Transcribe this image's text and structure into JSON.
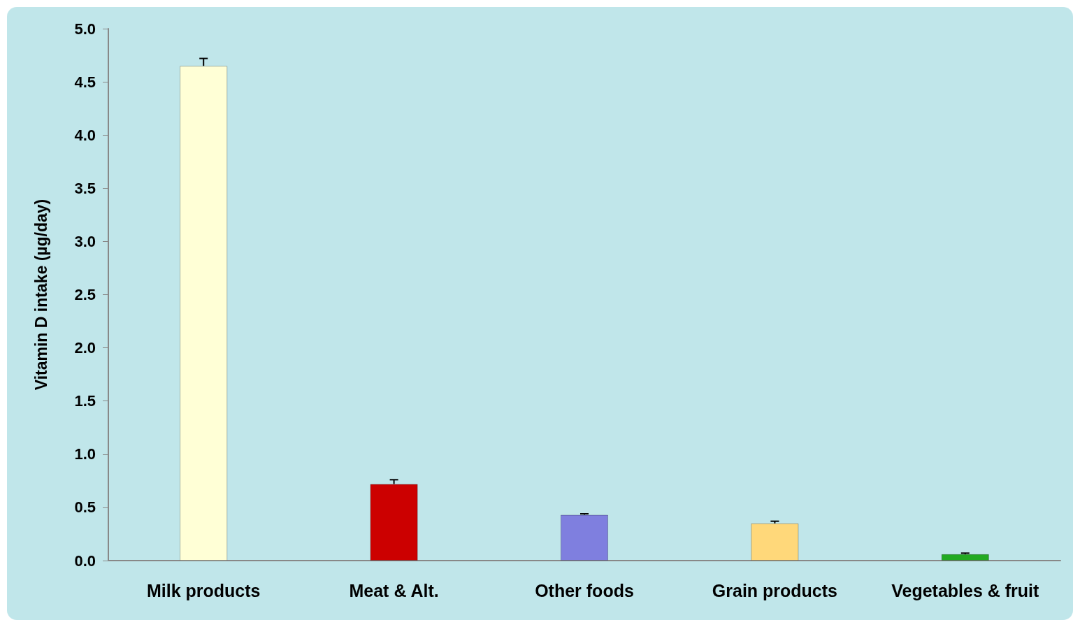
{
  "chart_data": {
    "type": "bar",
    "ylabel": "Vitamin D intake (µg/day)",
    "categories": [
      "Milk products",
      "Meat & Alt.",
      "Other foods",
      "Grain products",
      "Vegetables & fruit"
    ],
    "values": [
      4.65,
      0.72,
      0.43,
      0.35,
      0.06
    ],
    "colors": [
      "#ffffd6",
      "#cc0000",
      "#7f7fdf",
      "#ffd87a",
      "#22aa22"
    ],
    "errors": [
      [
        4.65,
        4.72
      ],
      [
        0.72,
        0.76
      ],
      [
        0.43,
        0.44
      ],
      [
        0.35,
        0.37
      ],
      [
        0.06,
        0.07
      ]
    ],
    "ylim": [
      0,
      5
    ],
    "yticks": [
      {
        "value": 0,
        "label": "0.0"
      },
      0.5,
      {
        "value": 1,
        "label": "1.0"
      },
      1.5,
      {
        "value": 2,
        "label": "2.0"
      },
      2.5,
      {
        "value": 3,
        "label": "3.0"
      },
      3.5,
      {
        "value": 4,
        "label": "4.0"
      },
      4.5,
      {
        "value": 5,
        "label": "5.0"
      }
    ],
    "grid": false
  }
}
